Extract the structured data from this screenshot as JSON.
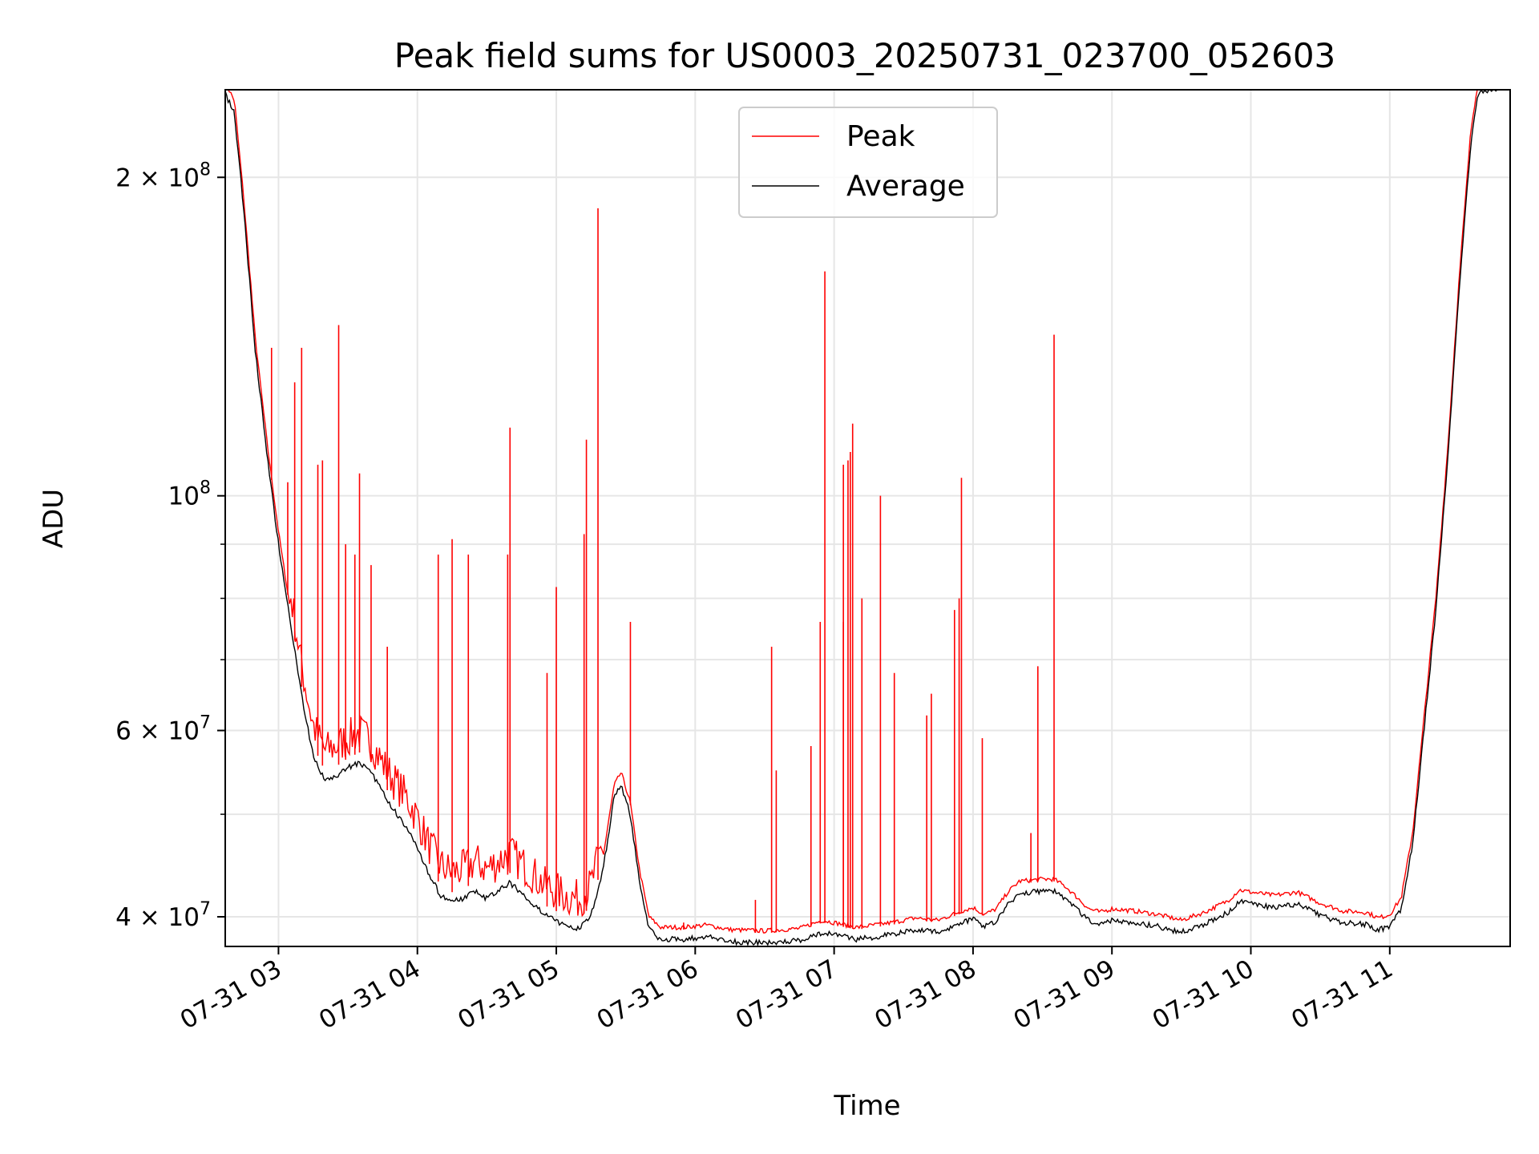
{
  "chart_data": {
    "type": "line",
    "title": "Peak field sums for US0003_20250731_023700_052603",
    "xlabel": "Time",
    "ylabel": "ADU",
    "yscale": "log",
    "ylim": [
      37500000,
      242000000
    ],
    "xlim": [
      "2025-07-31 02:37",
      "2025-07-31 11:52"
    ],
    "grid": true,
    "legend_position": "top-center",
    "x_tick_labels": [
      "07-31 03",
      "07-31 04",
      "07-31 05",
      "07-31 06",
      "07-31 07",
      "07-31 08",
      "07-31 09",
      "07-31 10",
      "07-31 11"
    ],
    "x_ticks": [
      "2025-07-31 03:00",
      "2025-07-31 04:00",
      "2025-07-31 05:00",
      "2025-07-31 06:00",
      "2025-07-31 07:00",
      "2025-07-31 08:00",
      "2025-07-31 09:00",
      "2025-07-31 10:00",
      "2025-07-31 11:00"
    ],
    "y_ticks": [
      {
        "value": 40000000,
        "mantissa": "4",
        "exponent": "7"
      },
      {
        "value": 60000000,
        "mantissa": "6",
        "exponent": "7"
      },
      {
        "value": 100000000,
        "mantissa": "",
        "exponent": "8"
      },
      {
        "value": 200000000,
        "mantissa": "2",
        "exponent": "8"
      }
    ],
    "y_minor_ticks": [
      50000000,
      70000000,
      80000000,
      90000000
    ],
    "series": [
      {
        "name": "Peak",
        "color": "#ff0000",
        "baseline": [
          [
            "2025-07-31 02:37",
            245000000
          ],
          [
            "2025-07-31 02:41",
            235000000
          ],
          [
            "2025-07-31 02:45",
            190000000
          ],
          [
            "2025-07-31 02:50",
            140000000
          ],
          [
            "2025-07-31 02:55",
            112000000
          ],
          [
            "2025-07-31 03:00",
            92000000
          ],
          [
            "2025-07-31 03:05",
            78000000
          ],
          [
            "2025-07-31 03:10",
            66000000
          ],
          [
            "2025-07-31 03:15",
            58000000
          ],
          [
            "2025-07-31 03:20",
            55000000
          ],
          [
            "2025-07-31 03:25",
            55500000
          ],
          [
            "2025-07-31 03:30",
            56500000
          ],
          [
            "2025-07-31 03:35",
            57200000
          ],
          [
            "2025-07-31 03:40",
            56000000
          ],
          [
            "2025-07-31 03:45",
            53500000
          ],
          [
            "2025-07-31 03:50",
            51500000
          ],
          [
            "2025-07-31 03:55",
            49800000
          ],
          [
            "2025-07-31 04:00",
            47500000
          ],
          [
            "2025-07-31 04:05",
            44800000
          ],
          [
            "2025-07-31 04:10",
            42800000
          ],
          [
            "2025-07-31 04:15",
            42200000
          ],
          [
            "2025-07-31 04:20",
            42500000
          ],
          [
            "2025-07-31 04:25",
            43200000
          ],
          [
            "2025-07-31 04:30",
            42500000
          ],
          [
            "2025-07-31 04:35",
            43200000
          ],
          [
            "2025-07-31 04:40",
            44000000
          ],
          [
            "2025-07-31 04:45",
            43000000
          ],
          [
            "2025-07-31 04:50",
            42000000
          ],
          [
            "2025-07-31 04:55",
            41000000
          ],
          [
            "2025-07-31 05:00",
            40500000
          ],
          [
            "2025-07-31 05:05",
            40000000
          ],
          [
            "2025-07-31 05:10",
            39800000
          ],
          [
            "2025-07-31 05:15",
            41000000
          ],
          [
            "2025-07-31 05:20",
            45000000
          ],
          [
            "2025-07-31 05:25",
            53000000
          ],
          [
            "2025-07-31 05:28",
            54500000
          ],
          [
            "2025-07-31 05:32",
            51000000
          ],
          [
            "2025-07-31 05:36",
            44000000
          ],
          [
            "2025-07-31 05:40",
            39800000
          ],
          [
            "2025-07-31 05:45",
            38900000
          ],
          [
            "2025-07-31 05:55",
            38900000
          ],
          [
            "2025-07-31 06:05",
            39100000
          ],
          [
            "2025-07-31 06:15",
            38700000
          ],
          [
            "2025-07-31 06:30",
            38600000
          ],
          [
            "2025-07-31 06:45",
            38800000
          ],
          [
            "2025-07-31 06:55",
            39500000
          ],
          [
            "2025-07-31 07:10",
            38900000
          ],
          [
            "2025-07-31 07:25",
            39300000
          ],
          [
            "2025-07-31 07:35",
            39700000
          ],
          [
            "2025-07-31 07:45",
            39500000
          ],
          [
            "2025-07-31 07:55",
            40300000
          ],
          [
            "2025-07-31 08:00",
            40600000
          ],
          [
            "2025-07-31 08:05",
            40000000
          ],
          [
            "2025-07-31 08:10",
            40500000
          ],
          [
            "2025-07-31 08:15",
            42000000
          ],
          [
            "2025-07-31 08:20",
            43000000
          ],
          [
            "2025-07-31 08:30",
            43200000
          ],
          [
            "2025-07-31 08:35",
            43200000
          ],
          [
            "2025-07-31 08:40",
            42500000
          ],
          [
            "2025-07-31 08:45",
            41500000
          ],
          [
            "2025-07-31 08:50",
            40500000
          ],
          [
            "2025-07-31 08:55",
            40200000
          ],
          [
            "2025-07-31 09:00",
            40500000
          ],
          [
            "2025-07-31 09:10",
            40300000
          ],
          [
            "2025-07-31 09:20",
            40000000
          ],
          [
            "2025-07-31 09:30",
            39500000
          ],
          [
            "2025-07-31 09:40",
            40200000
          ],
          [
            "2025-07-31 09:50",
            41200000
          ],
          [
            "2025-07-31 09:55",
            42200000
          ],
          [
            "2025-07-31 10:00",
            42000000
          ],
          [
            "2025-07-31 10:10",
            41700000
          ],
          [
            "2025-07-31 10:20",
            42000000
          ],
          [
            "2025-07-31 10:30",
            41000000
          ],
          [
            "2025-07-31 10:40",
            40300000
          ],
          [
            "2025-07-31 10:50",
            40200000
          ],
          [
            "2025-07-31 10:55",
            39700000
          ],
          [
            "2025-07-31 11:00",
            40000000
          ],
          [
            "2025-07-31 11:05",
            41500000
          ],
          [
            "2025-07-31 11:10",
            48000000
          ],
          [
            "2025-07-31 11:15",
            62000000
          ],
          [
            "2025-07-31 11:20",
            80000000
          ],
          [
            "2025-07-31 11:25",
            110000000
          ],
          [
            "2025-07-31 11:30",
            160000000
          ],
          [
            "2025-07-31 11:35",
            220000000
          ],
          [
            "2025-07-31 11:38",
            245000000
          ],
          [
            "2025-07-31 11:52",
            250000000
          ]
        ],
        "spikes": [
          [
            "2025-07-31 02:57",
            138000000
          ],
          [
            "2025-07-31 03:04",
            103000000
          ],
          [
            "2025-07-31 03:07",
            128000000
          ],
          [
            "2025-07-31 03:10",
            138000000
          ],
          [
            "2025-07-31 03:17",
            107000000
          ],
          [
            "2025-07-31 03:19",
            108000000
          ],
          [
            "2025-07-31 03:26",
            145000000
          ],
          [
            "2025-07-31 03:29",
            90000000
          ],
          [
            "2025-07-31 03:33",
            88000000
          ],
          [
            "2025-07-31 03:35",
            105000000
          ],
          [
            "2025-07-31 03:40",
            86000000
          ],
          [
            "2025-07-31 03:47",
            72000000
          ],
          [
            "2025-07-31 04:09",
            88000000
          ],
          [
            "2025-07-31 04:15",
            91000000
          ],
          [
            "2025-07-31 04:22",
            88000000
          ],
          [
            "2025-07-31 04:40",
            116000000
          ],
          [
            "2025-07-31 04:39",
            88000000
          ],
          [
            "2025-07-31 04:56",
            68000000
          ],
          [
            "2025-07-31 05:00",
            82000000
          ],
          [
            "2025-07-31 05:12",
            92000000
          ],
          [
            "2025-07-31 05:13",
            113000000
          ],
          [
            "2025-07-31 05:18",
            187000000
          ],
          [
            "2025-07-31 05:32",
            76000000
          ],
          [
            "2025-07-31 05:55",
            39500000
          ],
          [
            "2025-07-31 06:26",
            41500000
          ],
          [
            "2025-07-31 06:33",
            72000000
          ],
          [
            "2025-07-31 06:35",
            55000000
          ],
          [
            "2025-07-31 06:50",
            58000000
          ],
          [
            "2025-07-31 06:54",
            76000000
          ],
          [
            "2025-07-31 06:56",
            163000000
          ],
          [
            "2025-07-31 07:04",
            76000000
          ],
          [
            "2025-07-31 07:04",
            107000000
          ],
          [
            "2025-07-31 07:06",
            108000000
          ],
          [
            "2025-07-31 07:07",
            110000000
          ],
          [
            "2025-07-31 07:08",
            117000000
          ],
          [
            "2025-07-31 07:12",
            80000000
          ],
          [
            "2025-07-31 07:20",
            100000000
          ],
          [
            "2025-07-31 07:26",
            68000000
          ],
          [
            "2025-07-31 07:40",
            62000000
          ],
          [
            "2025-07-31 07:42",
            65000000
          ],
          [
            "2025-07-31 07:52",
            78000000
          ],
          [
            "2025-07-31 07:55",
            104000000
          ],
          [
            "2025-07-31 07:54",
            80000000
          ],
          [
            "2025-07-31 08:04",
            59000000
          ],
          [
            "2025-07-31 08:25",
            48000000
          ],
          [
            "2025-07-31 08:28",
            69000000
          ],
          [
            "2025-07-31 08:35",
            142000000
          ]
        ]
      },
      {
        "name": "Average",
        "color": "#000000",
        "baseline_from": "Peak",
        "offset_factor": 0.985
      }
    ]
  }
}
